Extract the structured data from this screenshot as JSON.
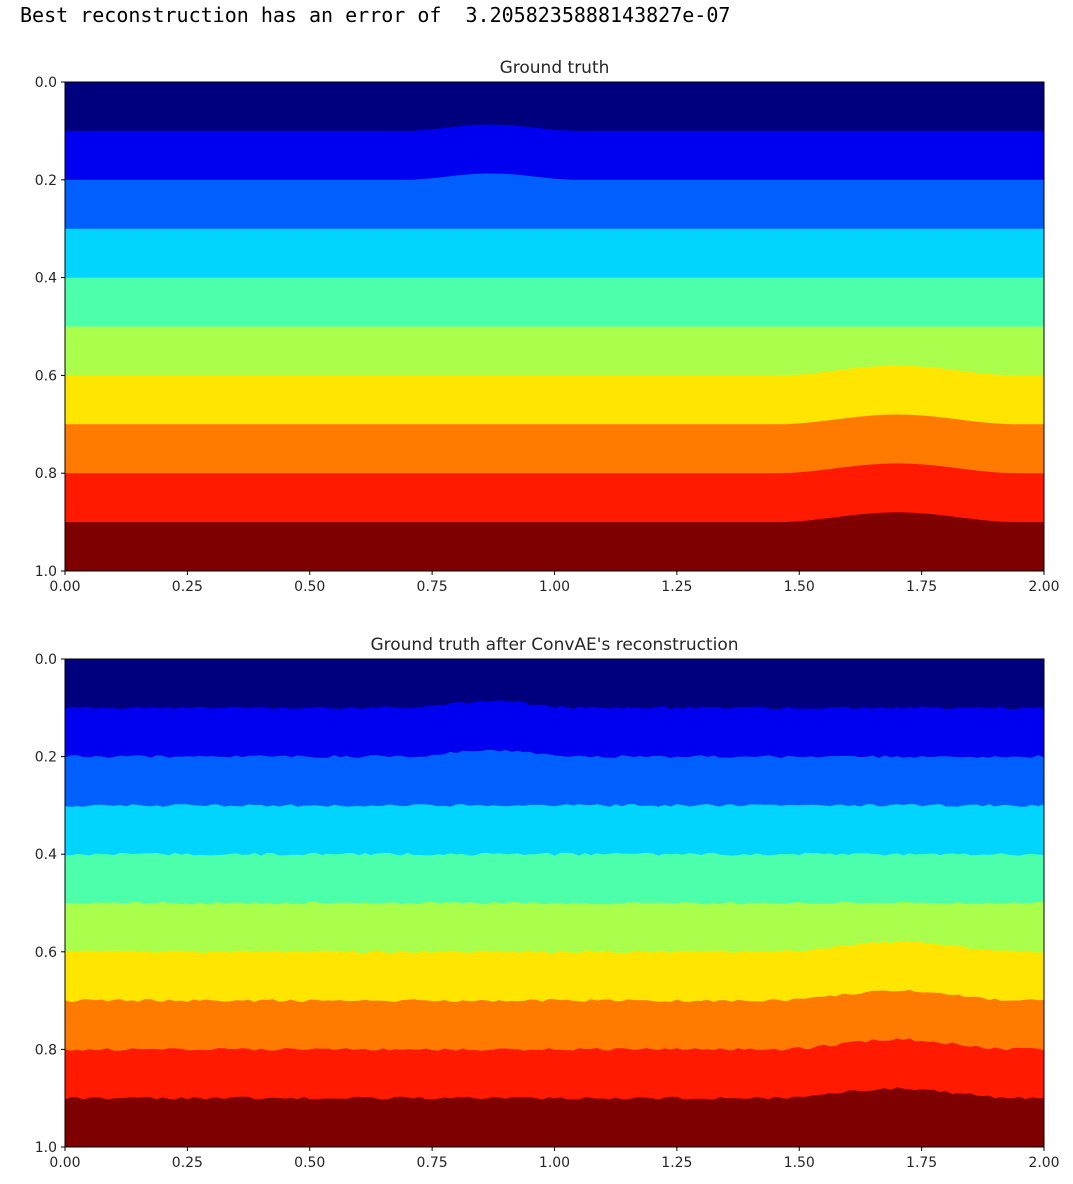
{
  "output": {
    "text": "Best reconstruction has an error of  3.2058235888143827e-07"
  },
  "chart_data": [
    {
      "type": "heatmap",
      "title": "Ground truth",
      "xlabel": "",
      "ylabel": "",
      "xlim": [
        0,
        2
      ],
      "ylim": [
        1,
        0
      ],
      "y_inverted": true,
      "grid": false,
      "x_ticks": [
        "0.00",
        "0.25",
        "0.50",
        "0.75",
        "1.00",
        "1.25",
        "1.50",
        "1.75",
        "2.00"
      ],
      "y_ticks": [
        "0.0",
        "0.2",
        "0.4",
        "0.6",
        "0.8",
        "1.0"
      ],
      "noisy": false,
      "layers": [
        {
          "color": "#00007f",
          "top": 0.0
        },
        {
          "color": "#0000f1",
          "top": 0.1
        },
        {
          "color": "#0060ff",
          "top": 0.2
        },
        {
          "color": "#00d4ff",
          "top": 0.3
        },
        {
          "color": "#4cffaa",
          "top": 0.4
        },
        {
          "color": "#aaff4d",
          "top": 0.5
        },
        {
          "color": "#ffe500",
          "top": 0.6
        },
        {
          "color": "#ff7b00",
          "top": 0.7
        },
        {
          "color": "#ff1a00",
          "top": 0.8
        },
        {
          "color": "#7f0000",
          "top": 0.9
        }
      ],
      "anomalies": [
        {
          "center_x": 0.87,
          "width_x": 0.36,
          "amplitude": 0.013,
          "layers_from": 1,
          "layers_to": 2
        },
        {
          "center_x": 1.7,
          "width_x": 0.5,
          "amplitude": 0.02,
          "layers_from": 6,
          "layers_to": 9
        }
      ]
    },
    {
      "type": "heatmap",
      "title": "Ground truth after ConvAE's reconstruction",
      "xlabel": "",
      "ylabel": "",
      "xlim": [
        0,
        2
      ],
      "ylim": [
        1,
        0
      ],
      "y_inverted": true,
      "grid": false,
      "x_ticks": [
        "0.00",
        "0.25",
        "0.50",
        "0.75",
        "1.00",
        "1.25",
        "1.50",
        "1.75",
        "2.00"
      ],
      "y_ticks": [
        "0.0",
        "0.2",
        "0.4",
        "0.6",
        "0.8",
        "1.0"
      ],
      "noisy": true,
      "layers": [
        {
          "color": "#00007f",
          "top": 0.0
        },
        {
          "color": "#0000f1",
          "top": 0.1
        },
        {
          "color": "#0060ff",
          "top": 0.2
        },
        {
          "color": "#00d4ff",
          "top": 0.3
        },
        {
          "color": "#4cffaa",
          "top": 0.4
        },
        {
          "color": "#aaff4d",
          "top": 0.5
        },
        {
          "color": "#ffe500",
          "top": 0.6
        },
        {
          "color": "#ff7b00",
          "top": 0.7
        },
        {
          "color": "#ff1a00",
          "top": 0.8
        },
        {
          "color": "#7f0000",
          "top": 0.9
        }
      ],
      "anomalies": [
        {
          "center_x": 0.87,
          "width_x": 0.36,
          "amplitude": 0.013,
          "layers_from": 1,
          "layers_to": 2
        },
        {
          "center_x": 1.7,
          "width_x": 0.5,
          "amplitude": 0.02,
          "layers_from": 6,
          "layers_to": 9
        }
      ]
    }
  ]
}
